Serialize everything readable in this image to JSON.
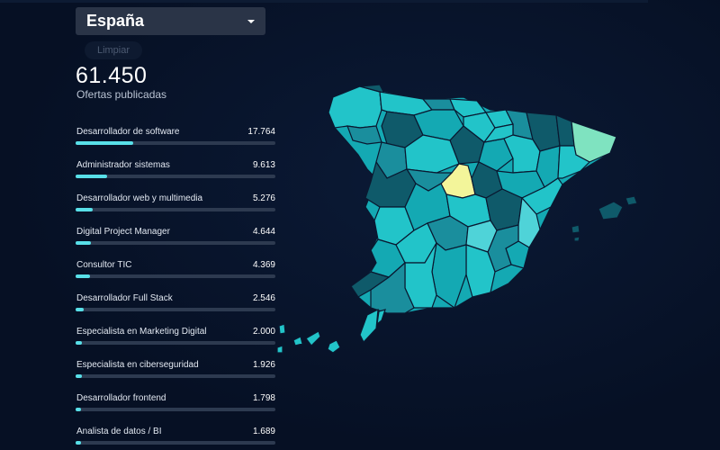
{
  "filter": {
    "region": "España",
    "clear_label": "Limpiar"
  },
  "summary": {
    "total": "61.450",
    "label": "Ofertas publicadas"
  },
  "jobs": [
    {
      "name": "Desarrollador de software",
      "count": "17.764",
      "value": 17764
    },
    {
      "name": "Administrador sistemas",
      "count": "9.613",
      "value": 9613
    },
    {
      "name": "Desarrollador web y multimedia",
      "count": "5.276",
      "value": 5276
    },
    {
      "name": "Digital Project Manager",
      "count": "4.644",
      "value": 4644
    },
    {
      "name": "Consultor TIC",
      "count": "4.369",
      "value": 4369
    },
    {
      "name": "Desarrollador Full Stack",
      "count": "2.546",
      "value": 2546
    },
    {
      "name": "Especialista en Marketing Digital",
      "count": "2.000",
      "value": 2000
    },
    {
      "name": "Especialista en ciberseguridad",
      "count": "1.926",
      "value": 1926
    },
    {
      "name": "Desarrollador frontend",
      "count": "1.798",
      "value": 1798
    },
    {
      "name": "Analista de datos / BI",
      "count": "1.689",
      "value": 1689
    }
  ],
  "colors": {
    "bar_fill": "#58dfe8",
    "bar_track": "#2d3a50",
    "map_high": "#f3f59a",
    "map_second": "#7fe3c0",
    "map_dark": "#0f5a6a",
    "map_mid": "#14a9b3",
    "map_light": "#22c4c9"
  }
}
